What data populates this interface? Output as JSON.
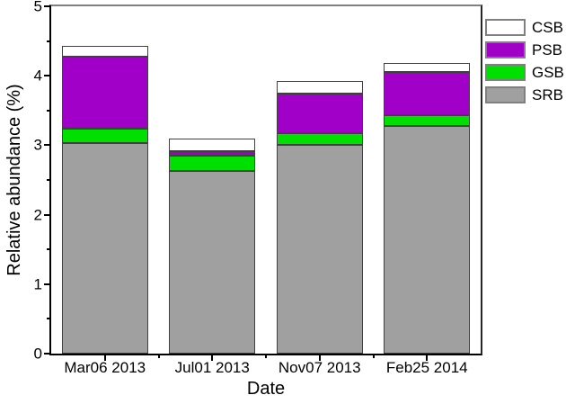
{
  "figure": {
    "background": "#ffffff"
  },
  "chart_data": {
    "type": "bar",
    "stacked": true,
    "title": "",
    "xlabel": "Date",
    "ylabel": "Relative abundance (%)",
    "categories": [
      "Mar06 2013",
      "Jul01 2013",
      "Nov07 2013",
      "Feb25 2014"
    ],
    "series": [
      {
        "name": "SRB",
        "color": "#A0A0A0",
        "values": [
          3.03,
          2.63,
          3.0,
          3.28
        ]
      },
      {
        "name": "GSB",
        "color": "#00E000",
        "values": [
          0.21,
          0.22,
          0.18,
          0.15
        ]
      },
      {
        "name": "PSB",
        "color": "#A000C8",
        "values": [
          1.04,
          0.07,
          0.57,
          0.62
        ]
      },
      {
        "name": "CSB",
        "color": "#FFFFFF",
        "values": [
          0.15,
          0.17,
          0.18,
          0.13
        ]
      }
    ],
    "stack_totals": [
      4.43,
      3.09,
      3.93,
      4.18
    ],
    "legend": {
      "position": "top-right-outside",
      "order": [
        "CSB",
        "PSB",
        "GSB",
        "SRB"
      ]
    },
    "ylim": [
      0,
      5
    ],
    "yticks": [
      0,
      1,
      2,
      3,
      4,
      5
    ],
    "y_minor_step": 0.5,
    "x_minor_ticks_between_categories": true,
    "grid": false,
    "bar_border_color": "#404040",
    "axis_color": "#000000",
    "top_frame_color": "#808080"
  }
}
